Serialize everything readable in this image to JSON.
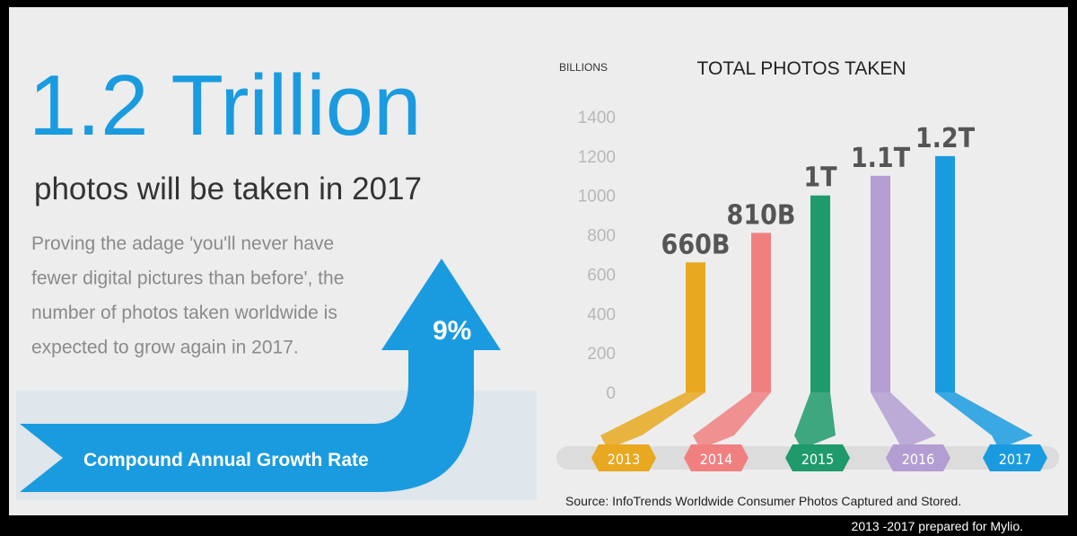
{
  "headline": "1.2 Trillion",
  "subheadline": "photos will be taken in 2017",
  "body_lines": [
    "Proving the adage 'you'll never have",
    "fewer digital pictures than before', the",
    "number of photos taken worldwide is",
    "expected to grow again in 2017."
  ],
  "growth_value": "9%",
  "growth_label": "Compound Annual Growth Rate",
  "chart_data": {
    "type": "bar",
    "title": "TOTAL PHOTOS TAKEN",
    "y_label": "BILLIONS",
    "categories": [
      "2013",
      "2014",
      "2015",
      "2016",
      "2017"
    ],
    "values": [
      660,
      810,
      1000,
      1100,
      1200
    ],
    "value_labels": [
      "660B",
      "810B",
      "1T",
      "1.1T",
      "1.2T"
    ],
    "colors": [
      "#e8a820",
      "#f08080",
      "#1f9a6a",
      "#b39dd2",
      "#1a9be0"
    ],
    "ylim": [
      0,
      1400
    ],
    "yticks": [
      0,
      200,
      400,
      600,
      800,
      1000,
      1200,
      1400
    ]
  },
  "source": "Source: InfoTrends Worldwide Consumer Photos Captured and Stored.",
  "footer": "2013 -2017 prepared for Mylio."
}
